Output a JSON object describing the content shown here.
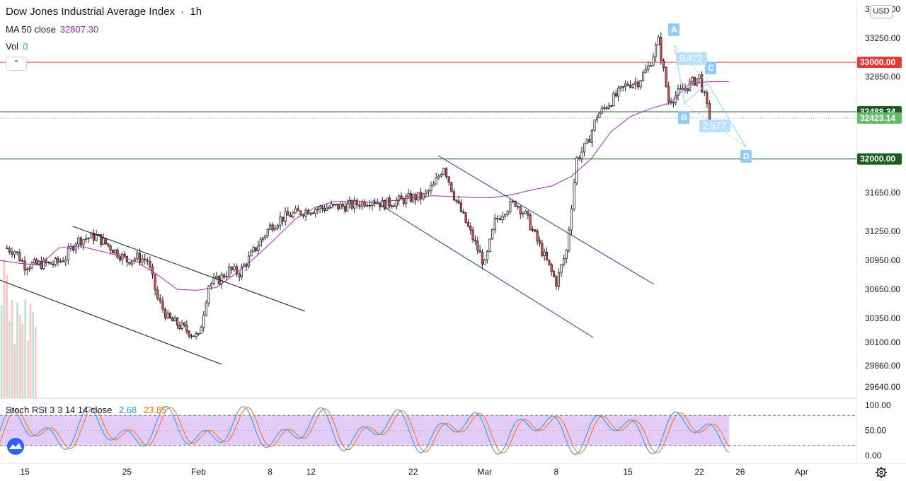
{
  "header": {
    "title": "Dow Jones Industrial Average Index",
    "separator": "·",
    "interval": "1h",
    "ma_label": "MA 50 close",
    "ma_value": "32807.30",
    "vol_label": "Vol",
    "vol_value": "0",
    "currency": "USD",
    "collapse_icon": "chevron-up-icon"
  },
  "colors": {
    "up": "#26a69a",
    "down": "#ef5350",
    "candle": "#222222",
    "ma": "#9c27b0",
    "resistance_red": "#e53935",
    "support_green": "#1b5e20",
    "last_price": "#2e7d32",
    "pattern": "#90caf9",
    "rsi_k": "#2196f3",
    "rsi_d": "#ff6d00",
    "rsi_band": "#e1c4f6"
  },
  "chart_data": [
    {
      "type": "candlestick",
      "title": "Dow Jones Industrial Average Index",
      "interval": "1h",
      "y_ticks": [
        33550,
        33250,
        32850,
        31650,
        31250,
        30950,
        30650,
        30350,
        30100,
        29860,
        29640
      ],
      "y_tick_labels": [
        "33550.00",
        "33250.00",
        "32850.00",
        "31650.00",
        "31250.00",
        "30950.00",
        "30650.00",
        "30350.00",
        "30100.00",
        "29860.00",
        "29640.00"
      ],
      "x_ticks": [
        "15",
        "25",
        "Feb",
        "8",
        "12",
        "22",
        "Mar",
        "8",
        "15",
        "22",
        "26",
        "Apr"
      ],
      "x_tick_dates": [
        "2021-01-15",
        "2021-01-25",
        "2021-02-01",
        "2021-02-08",
        "2021-02-12",
        "2021-02-22",
        "2021-03-01",
        "2021-03-08",
        "2021-03-15",
        "2021-03-22",
        "2021-03-26",
        "2021-04-01"
      ],
      "horizontal_levels": [
        {
          "value": 33000,
          "label": "33000.00",
          "color": "red"
        },
        {
          "value": 32488.34,
          "label": "32488.34",
          "color": "green"
        },
        {
          "value": 32000,
          "label": "32000.00",
          "color": "green"
        }
      ],
      "last_price": {
        "value": 32423.14,
        "label": "32423.14"
      },
      "close_path": {
        "dates": [
          "2021-01-13",
          "2021-01-14",
          "2021-01-15",
          "2021-01-18",
          "2021-01-19",
          "2021-01-20",
          "2021-01-21",
          "2021-01-22",
          "2021-01-25",
          "2021-01-26",
          "2021-01-27",
          "2021-01-28",
          "2021-01-29",
          "2021-02-01",
          "2021-02-02",
          "2021-02-03",
          "2021-02-04",
          "2021-02-05",
          "2021-02-08",
          "2021-02-09",
          "2021-02-10",
          "2021-02-11",
          "2021-02-12",
          "2021-02-16",
          "2021-02-17",
          "2021-02-18",
          "2021-02-19",
          "2021-02-22",
          "2021-02-23",
          "2021-02-24",
          "2021-02-25",
          "2021-02-26",
          "2021-03-01",
          "2021-03-02",
          "2021-03-03",
          "2021-03-04",
          "2021-03-05",
          "2021-03-08",
          "2021-03-09",
          "2021-03-10",
          "2021-03-11",
          "2021-03-12",
          "2021-03-15",
          "2021-03-16",
          "2021-03-17",
          "2021-03-18",
          "2021-03-19",
          "2021-03-22",
          "2021-03-23"
        ],
        "closes": [
          31080,
          31050,
          30900,
          30920,
          30980,
          31150,
          31180,
          31200,
          30950,
          30980,
          30950,
          30550,
          30350,
          30150,
          30700,
          30750,
          30850,
          30820,
          31300,
          31380,
          31420,
          31450,
          31480,
          31520,
          31550,
          31580,
          31530,
          31600,
          31610,
          31720,
          31930,
          31620,
          30900,
          31350,
          31480,
          31550,
          31420,
          30720,
          31050,
          32000,
          32150,
          32450,
          32780,
          32800,
          32950,
          33220,
          32600,
          32850,
          32423.14
        ]
      },
      "ma50_path": [
        30950,
        30920,
        30900,
        31080,
        31100,
        31050,
        31000,
        30930,
        30800,
        30650,
        30640,
        30670,
        30820,
        30990,
        31180,
        31380,
        31500,
        31560,
        31560,
        31550,
        31570,
        31600,
        31620,
        31610,
        31600,
        31600,
        31630,
        31680,
        31720,
        31820,
        32000,
        32280,
        32440,
        32520,
        32580,
        32780,
        32800,
        32800
      ],
      "annotations": [
        {
          "label": "A",
          "type": "pattern-point"
        },
        {
          "label": "B",
          "type": "pattern-point"
        },
        {
          "label": "C",
          "type": "pattern-point"
        },
        {
          "label": "D",
          "type": "pattern-point"
        },
        {
          "label": "0.422",
          "type": "ratio"
        },
        {
          "label": "2.377",
          "type": "ratio"
        }
      ]
    },
    {
      "type": "line",
      "title": "Stoch RSI 3 3 14 14 close",
      "series": [
        {
          "name": "K",
          "value": "2.68"
        },
        {
          "name": "D",
          "value": "23.85"
        }
      ],
      "ylim": [
        0,
        100
      ],
      "y_ticks": [
        100,
        50,
        0
      ],
      "y_tick_labels": [
        "100.00",
        "50.00",
        "0.00"
      ],
      "bands": [
        20,
        80
      ]
    }
  ]
}
